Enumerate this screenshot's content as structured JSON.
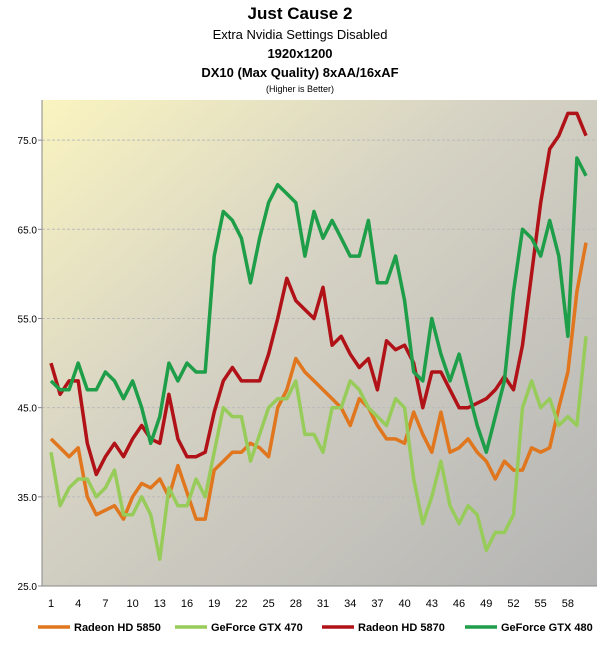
{
  "chart_data": {
    "type": "line",
    "title": "Just Cause 2",
    "subtitle": "Extra Nvidia Settings Disabled",
    "resolution": "1920x1200",
    "settings": "DX10 (Max Quality) 8xAA/16xAF",
    "note": "(Higher is Better)",
    "categories": [
      1,
      null,
      null,
      4,
      null,
      null,
      7,
      null,
      null,
      10,
      null,
      null,
      13,
      null,
      null,
      16,
      null,
      null,
      19,
      null,
      null,
      22,
      null,
      null,
      25,
      null,
      null,
      28,
      null,
      null,
      31,
      null,
      null,
      34,
      null,
      null,
      37,
      null,
      null,
      40,
      null,
      null,
      43,
      null,
      null,
      46,
      null,
      null,
      49,
      null,
      null,
      52,
      null,
      null,
      55,
      null,
      null,
      58,
      null,
      null
    ],
    "ylim": [
      25,
      79.5
    ],
    "yticks": [
      {
        "value": 25,
        "label": "25.0"
      },
      {
        "value": 35,
        "label": "35.0"
      },
      {
        "value": 45,
        "label": "45.0"
      },
      {
        "value": 55,
        "label": "55.0"
      },
      {
        "value": 65,
        "label": "65.0"
      },
      {
        "value": 75,
        "label": "75.0"
      }
    ],
    "grid": true,
    "legend": "bottom",
    "series": [
      {
        "name": "Radeon HD 5850",
        "color": "#e0761e",
        "values": [
          41.5,
          40.5,
          39.5,
          40.5,
          35,
          33,
          33.5,
          34,
          32.5,
          35,
          36.5,
          36,
          37,
          35,
          38.5,
          35.5,
          32.5,
          32.5,
          38,
          39,
          40,
          40,
          41,
          40.5,
          39.5,
          45,
          47,
          50.5,
          49,
          48,
          47,
          46,
          45,
          43,
          46,
          45,
          43,
          41.5,
          41.5,
          41,
          44.5,
          42,
          40,
          44.5,
          40,
          40.5,
          41.5,
          40,
          39,
          37,
          39,
          38,
          38,
          40.5,
          40,
          40.5,
          45,
          49,
          58,
          63.5
        ]
      },
      {
        "name": "GeForce GTX 470",
        "color": "#98cc5a",
        "values": [
          40,
          34,
          36,
          37,
          37,
          35,
          36,
          38,
          33,
          33,
          35,
          33,
          28,
          36,
          34,
          34,
          37,
          35,
          40,
          45,
          44,
          44,
          39,
          42,
          45,
          46,
          46,
          48,
          42,
          42,
          40,
          45,
          45,
          48,
          47,
          45,
          44,
          43,
          46,
          45,
          37,
          32,
          35,
          39,
          34,
          32,
          34,
          33,
          29,
          31,
          31,
          33,
          45,
          48,
          45,
          46,
          43,
          44,
          43,
          53
        ]
      },
      {
        "name": "Radeon HD 5870",
        "color": "#b01218",
        "values": [
          50,
          46.5,
          48,
          48,
          41,
          37.5,
          39.5,
          41,
          39.5,
          41.5,
          43,
          41.5,
          41,
          46.5,
          41.5,
          39.5,
          39.5,
          40,
          44.5,
          48,
          49.5,
          48,
          48,
          48,
          51,
          55,
          59.5,
          57,
          56,
          55,
          58.5,
          52,
          53,
          51,
          49.5,
          50.5,
          47,
          52.5,
          51.5,
          52,
          50,
          45,
          49,
          49,
          47,
          45,
          45,
          45.5,
          46,
          47,
          48.5,
          47,
          52,
          60,
          68,
          74,
          75.5,
          78,
          78,
          75.5
        ]
      },
      {
        "name": "GeForce GTX 480",
        "color": "#1e9e48",
        "values": [
          48,
          47,
          47,
          50,
          47,
          47,
          49,
          48,
          46,
          48,
          45,
          41,
          44,
          50,
          48,
          50,
          49,
          49,
          62,
          67,
          66,
          64,
          59,
          64,
          68,
          70,
          69,
          68,
          62,
          67,
          64,
          66,
          64,
          62,
          62,
          66,
          59,
          59,
          62,
          57,
          49,
          48,
          55,
          51,
          48,
          51,
          47,
          43,
          40,
          44,
          48,
          58,
          65,
          64,
          62,
          66,
          62,
          53,
          73,
          71
        ]
      }
    ]
  }
}
